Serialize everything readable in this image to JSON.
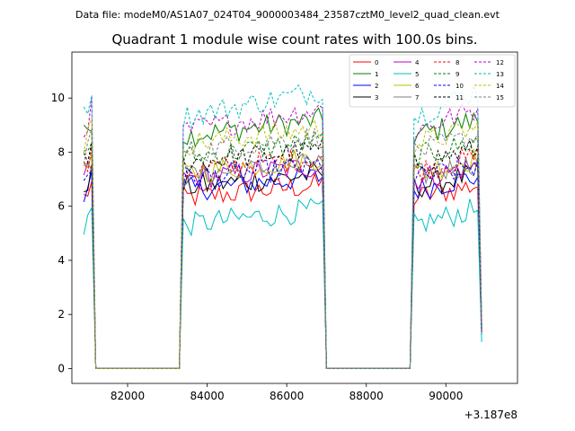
{
  "chart_data": {
    "type": "line",
    "suptitle": "Data file: modeM0/AS1A07_024T04_9000003484_23587cztM0_level2_quad_clean.evt",
    "title": "Quadrant 1 module wise count rates with 100.0s bins.",
    "xlabel": "",
    "ylabel": "",
    "x_offset_label": "+3.187e8",
    "xlim": [
      80600,
      91800
    ],
    "ylim": [
      -0.55,
      11.7
    ],
    "xticks": [
      82000,
      84000,
      86000,
      88000,
      90000
    ],
    "xtick_labels": [
      "82000",
      "84000",
      "86000",
      "88000",
      "90000"
    ],
    "yticks": [
      0,
      2,
      4,
      6,
      8,
      10
    ],
    "ytick_labels": [
      "0",
      "2",
      "4",
      "6",
      "8",
      "10"
    ],
    "grid": false,
    "legend_position": "top-right",
    "bin_seconds": 100,
    "segments": [
      {
        "start": 80900,
        "end": 81100,
        "amp": 1.0
      },
      {
        "start": 81200,
        "end": 83300,
        "amp": 0.0
      },
      {
        "start": 83400,
        "end": 86900,
        "amp": 1.0
      },
      {
        "start": 87000,
        "end": 89100,
        "amp": 0.0
      },
      {
        "start": 89200,
        "end": 90800,
        "amp": 1.0
      },
      {
        "start": 90900,
        "end": 90900,
        "amp": 0.2
      }
    ],
    "series": [
      {
        "name": "0",
        "color": "#ff0000",
        "dash": "solid",
        "base": 6.3,
        "trend": 0.5
      },
      {
        "name": "1",
        "color": "#008000",
        "dash": "solid",
        "base": 8.6,
        "trend": 0.6
      },
      {
        "name": "2",
        "color": "#0000ff",
        "dash": "solid",
        "base": 6.6,
        "trend": 0.5
      },
      {
        "name": "3",
        "color": "#000000",
        "dash": "solid",
        "base": 6.7,
        "trend": 0.5
      },
      {
        "name": "4",
        "color": "#bf00bf",
        "dash": "solid",
        "base": 7.0,
        "trend": 0.5
      },
      {
        "name": "5",
        "color": "#00bfbf",
        "dash": "solid",
        "base": 5.3,
        "trend": 0.6
      },
      {
        "name": "6",
        "color": "#bfbf00",
        "dash": "solid",
        "base": 7.2,
        "trend": 0.6
      },
      {
        "name": "7",
        "color": "#808080",
        "dash": "solid",
        "base": 7.1,
        "trend": 0.5
      },
      {
        "name": "8",
        "color": "#ff0000",
        "dash": "dashed",
        "base": 7.3,
        "trend": 0.5
      },
      {
        "name": "9",
        "color": "#008000",
        "dash": "dashed",
        "base": 7.8,
        "trend": 0.6
      },
      {
        "name": "10",
        "color": "#0000ff",
        "dash": "dashed",
        "base": 7.0,
        "trend": 0.5
      },
      {
        "name": "11",
        "color": "#000000",
        "dash": "dashed",
        "base": 7.6,
        "trend": 0.5
      },
      {
        "name": "12",
        "color": "#bf00bf",
        "dash": "dashed",
        "base": 8.8,
        "trend": 0.8
      },
      {
        "name": "13",
        "color": "#00bfbf",
        "dash": "dashed",
        "base": 9.3,
        "trend": 1.0
      },
      {
        "name": "14",
        "color": "#bfbf00",
        "dash": "dashed",
        "base": 8.3,
        "trend": 0.6
      },
      {
        "name": "15",
        "color": "#808080",
        "dash": "dashed",
        "base": 8.0,
        "trend": 0.6
      }
    ]
  }
}
